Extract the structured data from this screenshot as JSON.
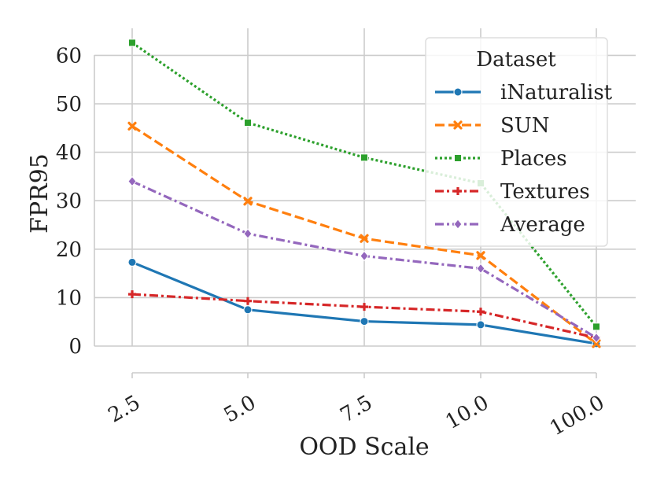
{
  "chart_data": {
    "type": "line",
    "xlabel": "OOD Scale",
    "ylabel": "FPR95",
    "categories": [
      "2.5",
      "5.0",
      "7.5",
      "10.0",
      "100.0"
    ],
    "ylim": [
      0,
      65
    ],
    "yticks": [
      0,
      10,
      20,
      30,
      40,
      50,
      60
    ],
    "grid": true,
    "legend": {
      "title": "Dataset",
      "position": "top-right"
    },
    "series": [
      {
        "name": "iNaturalist",
        "values": [
          17.3,
          7.5,
          5.1,
          4.4,
          0.5
        ],
        "color": "#1f77b4",
        "marker": "circle",
        "dash": "solid"
      },
      {
        "name": "SUN",
        "values": [
          45.4,
          29.9,
          22.2,
          18.7,
          0.5
        ],
        "color": "#ff7f0e",
        "marker": "x",
        "dash": "dashed"
      },
      {
        "name": "Places",
        "values": [
          62.6,
          46.1,
          38.9,
          33.6,
          4.0
        ],
        "color": "#2ca02c",
        "marker": "square",
        "dash": "dotted"
      },
      {
        "name": "Textures",
        "values": [
          10.7,
          9.3,
          8.1,
          7.1,
          1.7
        ],
        "color": "#d62728",
        "marker": "plus",
        "dash": "dashdot"
      },
      {
        "name": "Average",
        "values": [
          34.0,
          23.2,
          18.6,
          16.0,
          1.7
        ],
        "color": "#9467bd",
        "marker": "diamond",
        "dash": "dashdot"
      }
    ]
  }
}
